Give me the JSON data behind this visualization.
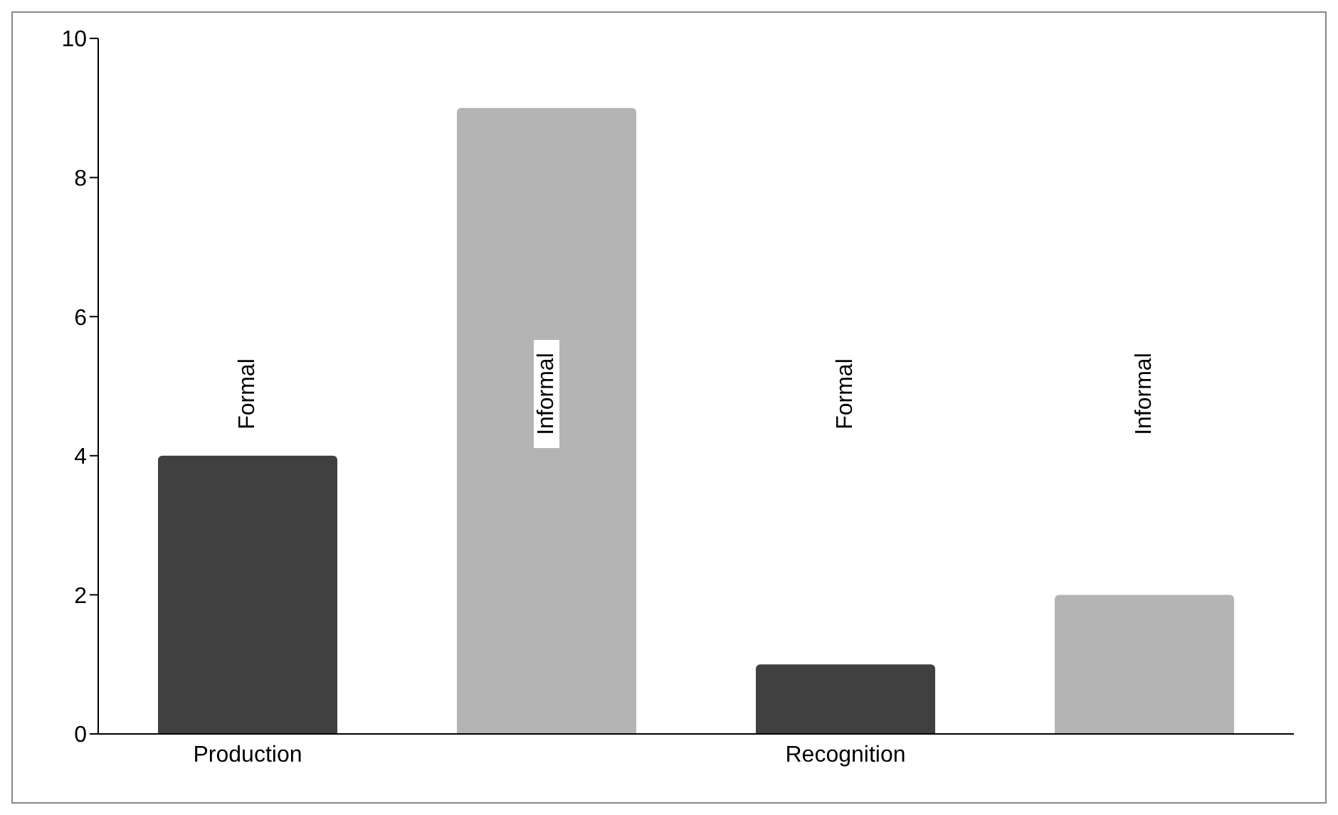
{
  "chart_data": {
    "type": "bar",
    "categories": [
      "Production",
      null,
      "Recognition",
      null
    ],
    "series": [
      {
        "name": "Formal",
        "color": "#404040",
        "values": [
          4,
          null,
          1,
          null
        ]
      },
      {
        "name": "Informal",
        "color": "#b4b4b4",
        "values": [
          null,
          9,
          null,
          2
        ]
      }
    ],
    "ylim": [
      0,
      10
    ],
    "yticks": [
      0,
      2,
      4,
      6,
      8,
      10
    ],
    "grid": false,
    "legend": false
  }
}
